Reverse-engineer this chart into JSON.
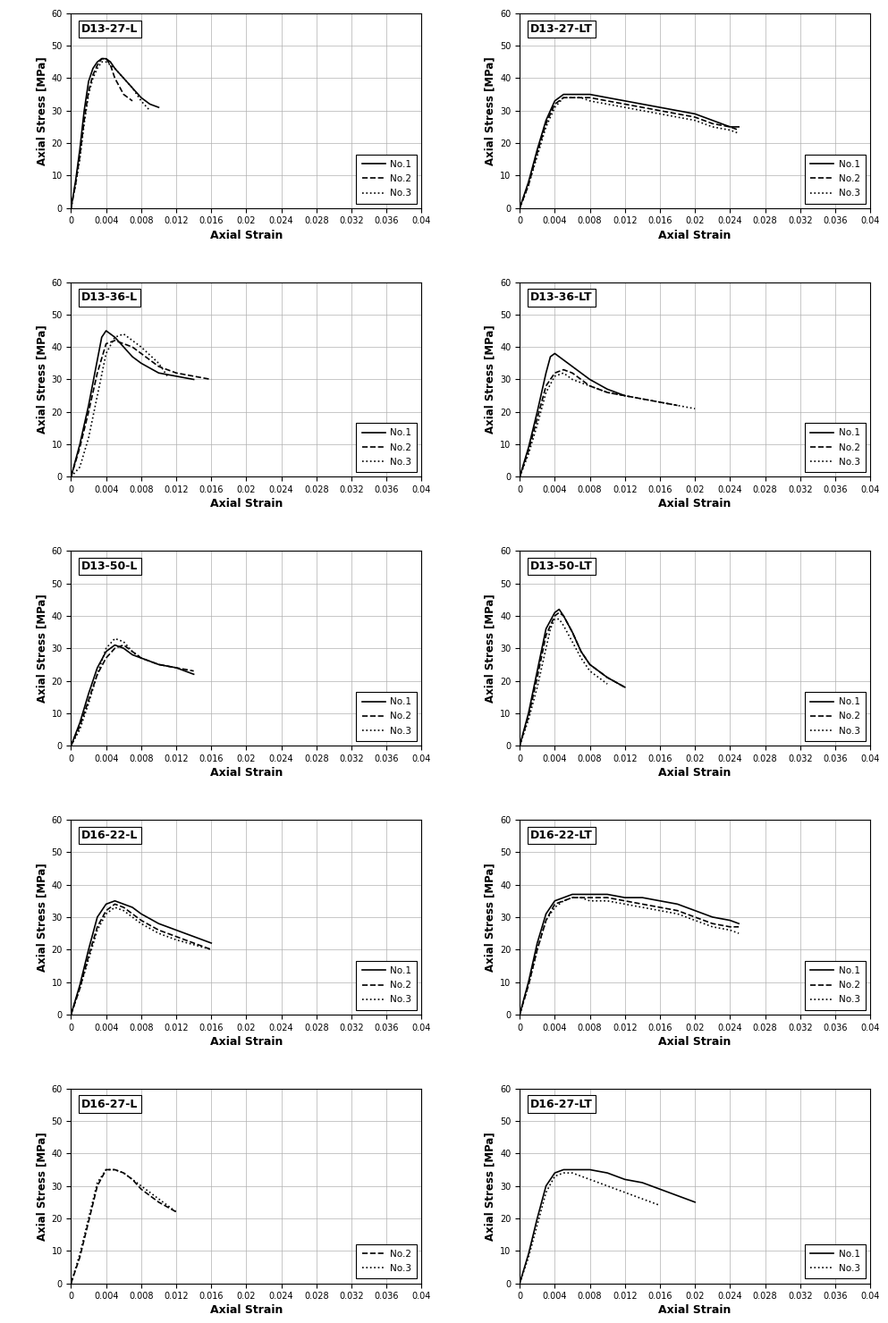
{
  "panels": [
    {
      "title": "D13-27-L",
      "legend": [
        "No.1",
        "No.2",
        "No.3"
      ],
      "curves": [
        {
          "style": "solid",
          "color": "#000000",
          "lw": 1.2,
          "x": [
            0,
            0.0005,
            0.001,
            0.0015,
            0.002,
            0.0025,
            0.003,
            0.0035,
            0.004,
            0.0045,
            0.005,
            0.006,
            0.007,
            0.008,
            0.009,
            0.01
          ],
          "y": [
            0,
            8,
            18,
            30,
            39,
            43,
            45,
            46,
            46,
            45,
            43,
            40,
            37,
            34,
            32,
            31
          ]
        },
        {
          "style": "dashed",
          "color": "#000000",
          "lw": 1.2,
          "x": [
            0,
            0.0005,
            0.001,
            0.0015,
            0.002,
            0.0025,
            0.003,
            0.0035,
            0.004,
            0.0045,
            0.005,
            0.006,
            0.007
          ],
          "y": [
            0,
            7,
            16,
            27,
            36,
            41,
            44,
            46,
            46,
            44,
            40,
            35,
            33
          ]
        },
        {
          "style": "dotted",
          "color": "#000000",
          "lw": 1.2,
          "x": [
            0,
            0.0005,
            0.001,
            0.0015,
            0.002,
            0.0025,
            0.003,
            0.0035,
            0.004,
            0.005,
            0.006,
            0.007,
            0.008,
            0.009
          ],
          "y": [
            0,
            7,
            15,
            26,
            35,
            40,
            43,
            45,
            45,
            43,
            40,
            37,
            33,
            30
          ]
        }
      ]
    },
    {
      "title": "D13-27-LT",
      "legend": [
        "No.1",
        "No.2",
        "No.3"
      ],
      "curves": [
        {
          "style": "solid",
          "color": "#000000",
          "lw": 1.2,
          "x": [
            0,
            0.001,
            0.002,
            0.003,
            0.004,
            0.005,
            0.006,
            0.007,
            0.008,
            0.01,
            0.012,
            0.014,
            0.016,
            0.018,
            0.02,
            0.022,
            0.024,
            0.025
          ],
          "y": [
            0,
            8,
            18,
            27,
            33,
            35,
            35,
            35,
            35,
            34,
            33,
            32,
            31,
            30,
            29,
            27,
            25,
            25
          ]
        },
        {
          "style": "dashed",
          "color": "#000000",
          "lw": 1.2,
          "x": [
            0,
            0.001,
            0.002,
            0.003,
            0.004,
            0.005,
            0.006,
            0.007,
            0.008,
            0.01,
            0.012,
            0.014,
            0.016,
            0.018,
            0.02,
            0.022,
            0.024,
            0.025
          ],
          "y": [
            0,
            7,
            17,
            26,
            32,
            34,
            34,
            34,
            34,
            33,
            32,
            31,
            30,
            29,
            28,
            26,
            25,
            24
          ]
        },
        {
          "style": "dotted",
          "color": "#000000",
          "lw": 1.2,
          "x": [
            0,
            0.001,
            0.002,
            0.003,
            0.004,
            0.005,
            0.006,
            0.007,
            0.008,
            0.01,
            0.012,
            0.014,
            0.016,
            0.018,
            0.02,
            0.022,
            0.024,
            0.025
          ],
          "y": [
            0,
            7,
            16,
            25,
            31,
            34,
            34,
            34,
            33,
            32,
            31,
            30,
            29,
            28,
            27,
            25,
            24,
            23
          ]
        }
      ]
    },
    {
      "title": "D13-36-L",
      "legend": [
        "No.1",
        "No.2",
        "No.3"
      ],
      "curves": [
        {
          "style": "solid",
          "color": "#000000",
          "lw": 1.2,
          "x": [
            0,
            0.001,
            0.002,
            0.003,
            0.0035,
            0.004,
            0.0045,
            0.005,
            0.006,
            0.007,
            0.008,
            0.01,
            0.012,
            0.014
          ],
          "y": [
            0,
            10,
            22,
            36,
            43,
            45,
            44,
            43,
            40,
            37,
            35,
            32,
            31,
            30
          ]
        },
        {
          "style": "dashed",
          "color": "#000000",
          "lw": 1.2,
          "x": [
            0,
            0.001,
            0.002,
            0.003,
            0.004,
            0.005,
            0.006,
            0.007,
            0.008,
            0.01,
            0.012,
            0.014,
            0.016
          ],
          "y": [
            0,
            9,
            20,
            32,
            41,
            42,
            41,
            40,
            38,
            34,
            32,
            31,
            30
          ]
        },
        {
          "style": "dotted",
          "color": "#000000",
          "lw": 1.2,
          "x": [
            0,
            0.001,
            0.002,
            0.003,
            0.004,
            0.005,
            0.006,
            0.007,
            0.008,
            0.01,
            0.011
          ],
          "y": [
            0,
            3,
            12,
            25,
            38,
            43,
            44,
            42,
            40,
            35,
            31
          ]
        }
      ]
    },
    {
      "title": "D13-36-LT",
      "legend": [
        "No.1",
        "No.2",
        "No.3"
      ],
      "curves": [
        {
          "style": "solid",
          "color": "#000000",
          "lw": 1.2,
          "x": [
            0,
            0.001,
            0.002,
            0.003,
            0.0035,
            0.004,
            0.005,
            0.006,
            0.007,
            0.008,
            0.01,
            0.012
          ],
          "y": [
            0,
            9,
            20,
            32,
            37,
            38,
            36,
            34,
            32,
            30,
            27,
            25
          ]
        },
        {
          "style": "dashed",
          "color": "#000000",
          "lw": 1.2,
          "x": [
            0,
            0.001,
            0.002,
            0.003,
            0.004,
            0.005,
            0.006,
            0.008,
            0.01,
            0.012,
            0.014,
            0.016,
            0.018
          ],
          "y": [
            0,
            8,
            18,
            28,
            32,
            33,
            32,
            28,
            26,
            25,
            24,
            23,
            22
          ]
        },
        {
          "style": "dotted",
          "color": "#000000",
          "lw": 1.2,
          "x": [
            0,
            0.001,
            0.002,
            0.003,
            0.004,
            0.005,
            0.006,
            0.008,
            0.01,
            0.012,
            0.014,
            0.016,
            0.018,
            0.02
          ],
          "y": [
            0,
            7,
            16,
            26,
            31,
            32,
            30,
            28,
            26,
            25,
            24,
            23,
            22,
            21
          ]
        }
      ]
    },
    {
      "title": "D13-50-L",
      "legend": [
        "No.1",
        "No.2",
        "No.3"
      ],
      "curves": [
        {
          "style": "solid",
          "color": "#000000",
          "lw": 1.2,
          "x": [
            0,
            0.001,
            0.002,
            0.003,
            0.004,
            0.005,
            0.006,
            0.007,
            0.008,
            0.009,
            0.01,
            0.012,
            0.014
          ],
          "y": [
            0,
            7,
            16,
            24,
            29,
            31,
            30,
            28,
            27,
            26,
            25,
            24,
            22
          ]
        },
        {
          "style": "dashed",
          "color": "#000000",
          "lw": 1.2,
          "x": [
            0,
            0.001,
            0.002,
            0.003,
            0.004,
            0.005,
            0.006,
            0.007,
            0.008,
            0.01,
            0.012,
            0.014
          ],
          "y": [
            0,
            6,
            14,
            22,
            27,
            30,
            31,
            29,
            27,
            25,
            24,
            23
          ]
        },
        {
          "style": "dotted",
          "color": "#000000",
          "lw": 1.2,
          "x": [
            0,
            0.001,
            0.002,
            0.003,
            0.004,
            0.005,
            0.006,
            0.007,
            0.008
          ],
          "y": [
            0,
            5,
            13,
            22,
            30,
            33,
            32,
            29,
            27
          ]
        }
      ]
    },
    {
      "title": "D13-50-LT",
      "legend": [
        "No.1",
        "No.2",
        "No.3"
      ],
      "curves": [
        {
          "style": "solid",
          "color": "#000000",
          "lw": 1.2,
          "x": [
            0,
            0.001,
            0.002,
            0.003,
            0.004,
            0.0045,
            0.005,
            0.006,
            0.007,
            0.008,
            0.01,
            0.012
          ],
          "y": [
            0,
            10,
            23,
            36,
            41,
            42,
            40,
            35,
            29,
            25,
            21,
            18
          ]
        },
        {
          "style": "dashed",
          "color": "#000000",
          "lw": 1.2,
          "x": [
            0,
            0.001,
            0.002,
            0.003,
            0.004,
            0.0045,
            0.005,
            0.006,
            0.007,
            0.008,
            0.01,
            0.012
          ],
          "y": [
            0,
            9,
            21,
            34,
            40,
            41,
            40,
            35,
            29,
            25,
            21,
            18
          ]
        },
        {
          "style": "dotted",
          "color": "#000000",
          "lw": 1.2,
          "x": [
            0,
            0.001,
            0.002,
            0.003,
            0.0035,
            0.004,
            0.0045,
            0.005,
            0.006,
            0.007,
            0.008,
            0.01
          ],
          "y": [
            0,
            8,
            18,
            30,
            36,
            39,
            39,
            37,
            32,
            27,
            23,
            19
          ]
        }
      ]
    },
    {
      "title": "D16-22-L",
      "legend": [
        "No.1",
        "No.2",
        "No.3"
      ],
      "curves": [
        {
          "style": "solid",
          "color": "#000000",
          "lw": 1.2,
          "x": [
            0,
            0.001,
            0.002,
            0.003,
            0.004,
            0.005,
            0.006,
            0.007,
            0.008,
            0.01,
            0.012,
            0.014,
            0.016
          ],
          "y": [
            0,
            9,
            20,
            30,
            34,
            35,
            34,
            33,
            31,
            28,
            26,
            24,
            22
          ]
        },
        {
          "style": "dashed",
          "color": "#000000",
          "lw": 1.2,
          "x": [
            0,
            0.001,
            0.002,
            0.003,
            0.004,
            0.005,
            0.006,
            0.007,
            0.008,
            0.01,
            0.012,
            0.014,
            0.016
          ],
          "y": [
            0,
            8,
            18,
            27,
            32,
            34,
            33,
            31,
            29,
            26,
            24,
            22,
            20
          ]
        },
        {
          "style": "dotted",
          "color": "#000000",
          "lw": 1.2,
          "x": [
            0,
            0.001,
            0.002,
            0.003,
            0.004,
            0.005,
            0.006,
            0.007,
            0.008,
            0.01,
            0.012,
            0.016
          ],
          "y": [
            0,
            8,
            17,
            26,
            31,
            33,
            32,
            30,
            28,
            25,
            23,
            20
          ]
        }
      ]
    },
    {
      "title": "D16-22-LT",
      "legend": [
        "No.1",
        "No.2",
        "No.3"
      ],
      "curves": [
        {
          "style": "solid",
          "color": "#000000",
          "lw": 1.2,
          "x": [
            0,
            0.001,
            0.002,
            0.003,
            0.004,
            0.005,
            0.006,
            0.007,
            0.008,
            0.01,
            0.012,
            0.014,
            0.016,
            0.018,
            0.02,
            0.022,
            0.024,
            0.025
          ],
          "y": [
            0,
            10,
            22,
            31,
            35,
            36,
            37,
            37,
            37,
            37,
            36,
            36,
            35,
            34,
            32,
            30,
            29,
            28
          ]
        },
        {
          "style": "dashed",
          "color": "#000000",
          "lw": 1.2,
          "x": [
            0,
            0.001,
            0.002,
            0.003,
            0.004,
            0.005,
            0.006,
            0.007,
            0.008,
            0.01,
            0.012,
            0.014,
            0.016,
            0.018,
            0.02,
            0.022,
            0.024,
            0.025
          ],
          "y": [
            0,
            9,
            20,
            29,
            34,
            35,
            36,
            36,
            36,
            36,
            35,
            34,
            33,
            32,
            30,
            28,
            27,
            27
          ]
        },
        {
          "style": "dotted",
          "color": "#000000",
          "lw": 1.2,
          "x": [
            0,
            0.001,
            0.002,
            0.003,
            0.004,
            0.005,
            0.006,
            0.007,
            0.008,
            0.01,
            0.012,
            0.014,
            0.016,
            0.018,
            0.02,
            0.022,
            0.024,
            0.025
          ],
          "y": [
            0,
            9,
            20,
            29,
            33,
            35,
            36,
            36,
            35,
            35,
            34,
            33,
            32,
            31,
            29,
            27,
            26,
            25
          ]
        }
      ]
    },
    {
      "title": "D16-27-L",
      "legend": [
        "No.2",
        "No.3"
      ],
      "curves": [
        {
          "style": "dashed",
          "color": "#000000",
          "lw": 1.2,
          "x": [
            0,
            0.001,
            0.002,
            0.003,
            0.004,
            0.005,
            0.006,
            0.007,
            0.008,
            0.01,
            0.012
          ],
          "y": [
            0,
            8,
            19,
            30,
            35,
            35,
            34,
            32,
            29,
            25,
            22
          ]
        },
        {
          "style": "dotted",
          "color": "#000000",
          "lw": 1.2,
          "x": [
            0,
            0.001,
            0.002,
            0.003,
            0.004,
            0.005,
            0.006,
            0.007,
            0.008,
            0.01,
            0.012
          ],
          "y": [
            0,
            9,
            20,
            31,
            35,
            35,
            34,
            32,
            30,
            26,
            22
          ]
        }
      ]
    },
    {
      "title": "D16-27-LT",
      "legend": [
        "No.1",
        "No.3"
      ],
      "curves": [
        {
          "style": "solid",
          "color": "#000000",
          "lw": 1.2,
          "x": [
            0,
            0.001,
            0.002,
            0.003,
            0.004,
            0.005,
            0.006,
            0.008,
            0.01,
            0.012,
            0.014,
            0.016,
            0.018,
            0.02
          ],
          "y": [
            0,
            9,
            20,
            30,
            34,
            35,
            35,
            35,
            34,
            32,
            31,
            29,
            27,
            25
          ]
        },
        {
          "style": "dotted",
          "color": "#000000",
          "lw": 1.2,
          "x": [
            0,
            0.001,
            0.002,
            0.003,
            0.004,
            0.005,
            0.006,
            0.007,
            0.008,
            0.01,
            0.012,
            0.014,
            0.016
          ],
          "y": [
            0,
            8,
            18,
            28,
            33,
            34,
            34,
            33,
            32,
            30,
            28,
            26,
            24
          ]
        }
      ]
    }
  ],
  "ylim": [
    0,
    60
  ],
  "xlim": [
    0,
    0.04
  ],
  "xticks": [
    0,
    0.004,
    0.008,
    0.012,
    0.016,
    0.02,
    0.024,
    0.028,
    0.032,
    0.036,
    0.04
  ],
  "xtick_labels": [
    "0",
    "0.004",
    "0.008",
    "0.012",
    "0.016",
    "0.02",
    "0.024",
    "0.028",
    "0.032",
    "0.036",
    "0.04"
  ],
  "yticks": [
    0,
    10,
    20,
    30,
    40,
    50,
    60
  ],
  "ytick_labels": [
    "0",
    "10",
    "20",
    "30",
    "40",
    "50",
    "60"
  ],
  "xlabel": "Axial Strain",
  "ylabel": "Axial Stress [MPa]"
}
